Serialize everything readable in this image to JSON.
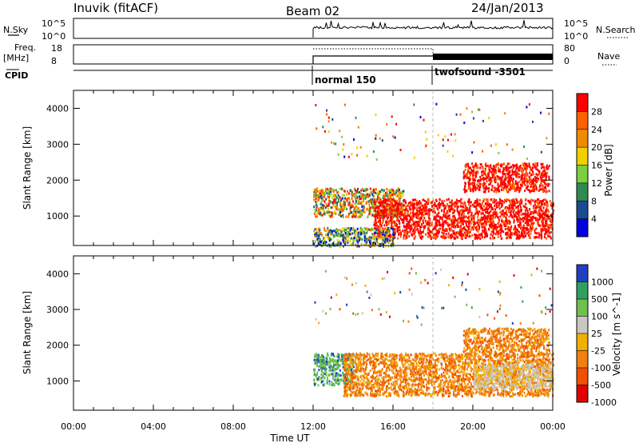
{
  "header": {
    "station": "Inuvik (fitACF)",
    "beam": "Beam 02",
    "date": "24/Jan/2013"
  },
  "noise_panel": {
    "left_label": "N.Sky",
    "right_label": "N.Search",
    "left_ticks": [
      "10^5",
      "10^0"
    ],
    "right_ticks": [
      "10^5",
      "10^0"
    ]
  },
  "freq_panel": {
    "left_label_1": "Freq.",
    "left_label_2": "[MHz]",
    "right_label": "Nave",
    "left_ticks": [
      "18",
      "8"
    ],
    "right_ticks": [
      "80",
      "0"
    ]
  },
  "cpid": {
    "label": "CPID",
    "modes": [
      {
        "name": "normal 150",
        "start_hour": 12.0
      },
      {
        "name": "twofsound -3501",
        "start_hour": 18.0
      }
    ]
  },
  "chart_data": [
    {
      "type": "heatmap",
      "panel": "power",
      "ylabel": "Slant Range [km]",
      "xlabel": "Time UT",
      "ylim": [
        180,
        4500
      ],
      "y_ticks": [
        1000,
        2000,
        3000,
        4000
      ],
      "x_ticks": [
        "00:00",
        "04:00",
        "08:00",
        "12:00",
        "16:00",
        "20:00",
        "00:00"
      ],
      "colorbar_label": "Power [dB]",
      "colorbar_ticks": [
        "28",
        "24",
        "20",
        "16",
        "12",
        "8",
        "4"
      ],
      "data_start_hour": 12.0,
      "mode_change_hour": 18.0,
      "regions": [
        {
          "t": [
            12.0,
            16.5
          ],
          "range_km": [
            1000,
            1800
          ],
          "level": "mid-high"
        },
        {
          "t": [
            15.0,
            24.0
          ],
          "range_km": [
            400,
            1500
          ],
          "level": "high"
        },
        {
          "t": [
            19.5,
            23.8
          ],
          "range_km": [
            1700,
            2500
          ],
          "level": "high"
        },
        {
          "t": [
            12.0,
            16.0
          ],
          "range_km": [
            180,
            700
          ],
          "level": "low-mid"
        }
      ]
    },
    {
      "type": "heatmap",
      "panel": "velocity",
      "ylabel": "Slant Range [km]",
      "xlabel": "Time UT",
      "ylim": [
        180,
        4500
      ],
      "y_ticks": [
        1000,
        2000,
        3000,
        4000
      ],
      "x_ticks": [
        "00:00",
        "04:00",
        "08:00",
        "12:00",
        "16:00",
        "20:00",
        "00:00"
      ],
      "colorbar_label": "Velocity [m s^-1]",
      "colorbar_ticks": [
        "1000",
        "500",
        "100",
        "25",
        "-25",
        "-100",
        "-500",
        "-1000"
      ],
      "data_start_hour": 12.0,
      "mode_change_hour": 18.0,
      "regions": [
        {
          "t": [
            12.0,
            14.0
          ],
          "range_km": [
            900,
            1800
          ],
          "level": "positive"
        },
        {
          "t": [
            13.5,
            24.0
          ],
          "range_km": [
            600,
            1800
          ],
          "level": "negative"
        },
        {
          "t": [
            20.0,
            24.0
          ],
          "range_km": [
            800,
            1500
          ],
          "level": "near-zero"
        },
        {
          "t": [
            19.5,
            23.8
          ],
          "range_km": [
            1700,
            2500
          ],
          "level": "negative"
        }
      ]
    }
  ],
  "colors": {
    "power_scale": [
      "#ff0000",
      "#ff6000",
      "#f08a00",
      "#f0d000",
      "#7ad040",
      "#2e8a50",
      "#1a4a90",
      "#0000e0"
    ],
    "velocity_scale": [
      "#2040c0",
      "#30a060",
      "#70c050",
      "#c8c8c0",
      "#f0b000",
      "#f08010",
      "#f05000",
      "#e00000"
    ]
  }
}
